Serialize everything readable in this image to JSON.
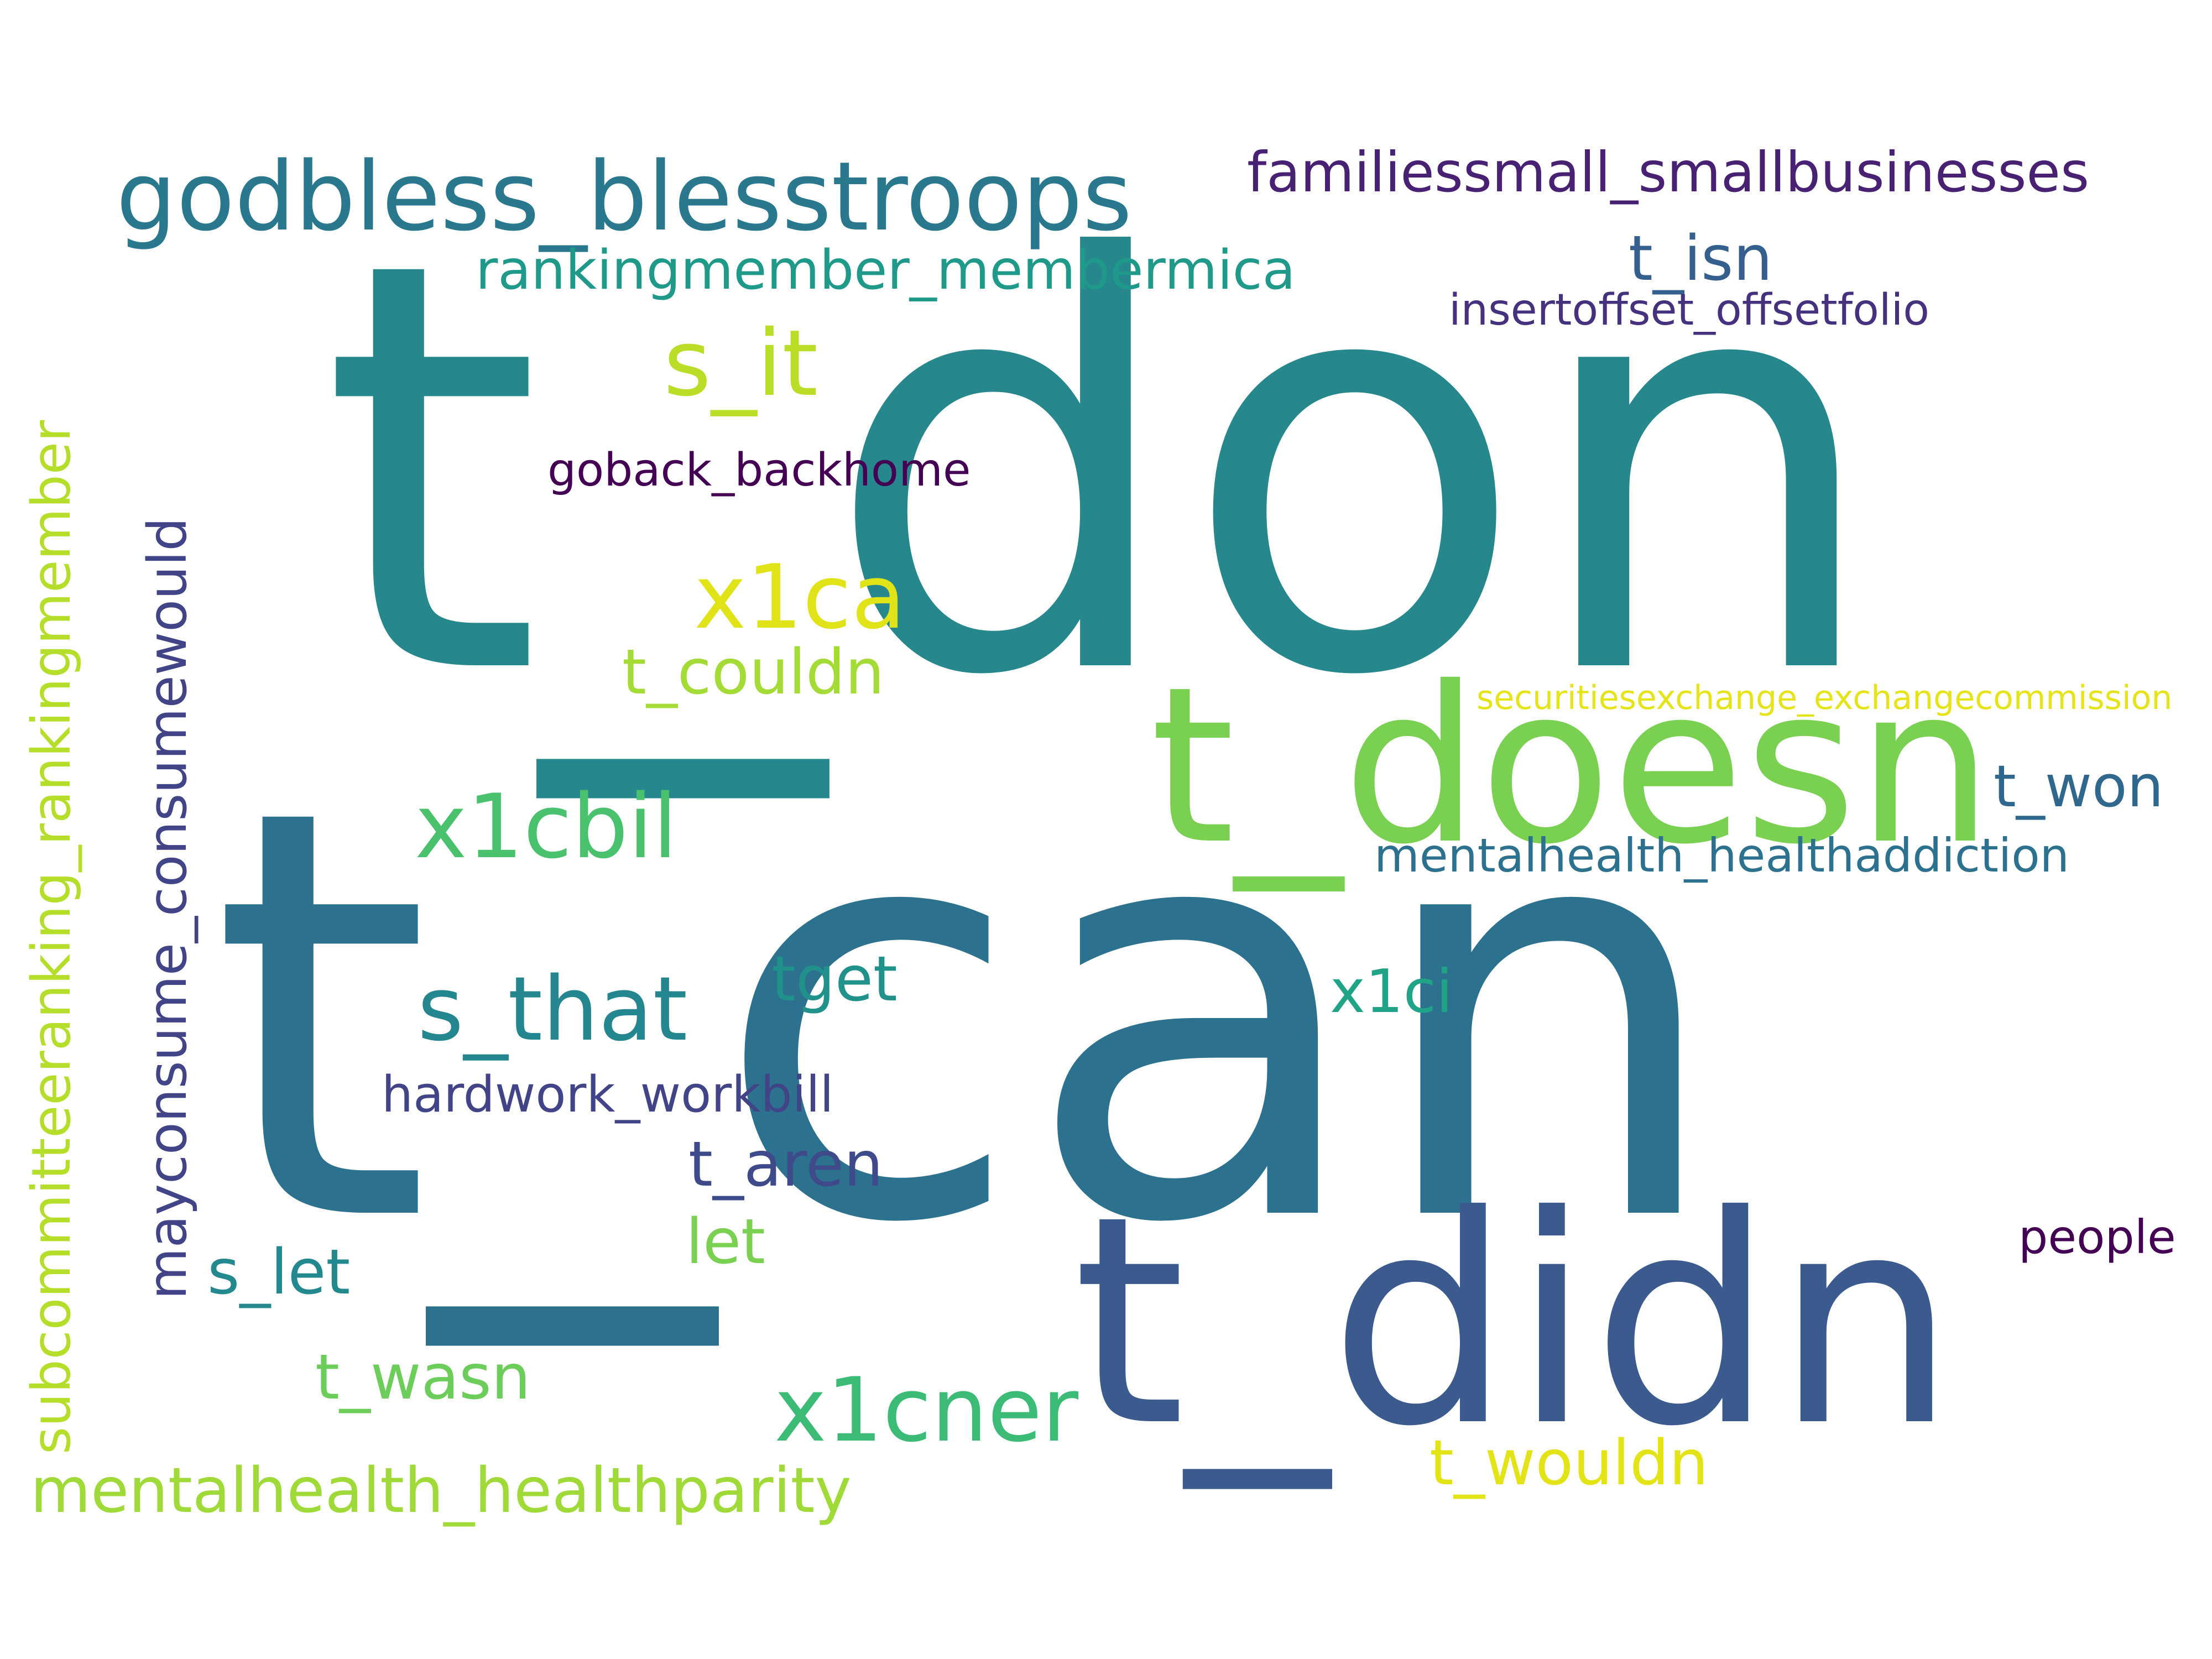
{
  "words": [
    {
      "id": "w1",
      "text": "t_don",
      "color": "#26878d",
      "vertical": false
    },
    {
      "id": "w2",
      "text": "t_can",
      "color": "#2c718e",
      "vertical": false
    },
    {
      "id": "w3",
      "text": "t_doesn",
      "color": "#7ad151",
      "vertical": false
    },
    {
      "id": "w4",
      "text": "t_didn",
      "color": "#3b5a8d",
      "vertical": false
    },
    {
      "id": "w5",
      "text": "godbless_blesstroops",
      "color": "#2a788e",
      "vertical": false
    },
    {
      "id": "w6",
      "text": "familiessmall_smallbusinesses",
      "color": "#482173",
      "vertical": false
    },
    {
      "id": "w7",
      "text": "rankingmember_membermica",
      "color": "#1f9a8a",
      "vertical": false
    },
    {
      "id": "w8",
      "text": "t_isn",
      "color": "#355f8d",
      "vertical": false
    },
    {
      "id": "w9",
      "text": "insertoffset_offsetfolio",
      "color": "#46317e",
      "vertical": false
    },
    {
      "id": "w10",
      "text": "s_it",
      "color": "#bade28",
      "vertical": false
    },
    {
      "id": "w11",
      "text": "goback_backhome",
      "color": "#440154",
      "vertical": false
    },
    {
      "id": "w12",
      "text": "x1ca",
      "color": "#dfe318",
      "vertical": false
    },
    {
      "id": "w13",
      "text": "t_couldn",
      "color": "#a5db36",
      "vertical": false
    },
    {
      "id": "w14",
      "text": "securitiesexchange_exchangecommission",
      "color": "#e5e419",
      "vertical": false
    },
    {
      "id": "w15",
      "text": "x1cbil",
      "color": "#4ac16d",
      "vertical": false
    },
    {
      "id": "w16",
      "text": "t_won",
      "color": "#30678d",
      "vertical": false
    },
    {
      "id": "w17",
      "text": "mentalhealth_healthaddiction",
      "color": "#2c728e",
      "vertical": false
    },
    {
      "id": "w18",
      "text": "tget",
      "color": "#21918c",
      "vertical": false
    },
    {
      "id": "w19",
      "text": "s_that",
      "color": "#24868e",
      "vertical": false
    },
    {
      "id": "w20",
      "text": "x1ci",
      "color": "#20a386",
      "vertical": false
    },
    {
      "id": "w21",
      "text": "hardwork_workbill",
      "color": "#414487",
      "vertical": false
    },
    {
      "id": "w22",
      "text": "t_aren",
      "color": "#3e4a89",
      "vertical": false
    },
    {
      "id": "w23",
      "text": "let",
      "color": "#7ad151",
      "vertical": false
    },
    {
      "id": "w24",
      "text": "people",
      "color": "#440154",
      "vertical": false
    },
    {
      "id": "w25",
      "text": "s_let",
      "color": "#23898e",
      "vertical": false
    },
    {
      "id": "w26",
      "text": "t_wasn",
      "color": "#6ccd5a",
      "vertical": false
    },
    {
      "id": "w27",
      "text": "x1cner",
      "color": "#3bbb75",
      "vertical": false
    },
    {
      "id": "w28",
      "text": "t_wouldn",
      "color": "#e2e418",
      "vertical": false
    },
    {
      "id": "w29",
      "text": "mentalhealth_healthparity",
      "color": "#a0da39",
      "vertical": false
    },
    {
      "id": "w30",
      "text": "mayconsume_consumewould",
      "color": "#414487",
      "vertical": true
    },
    {
      "id": "w31",
      "text": "subcommitteeranking_rankingmember",
      "color": "#b5de2b",
      "vertical": true
    }
  ]
}
